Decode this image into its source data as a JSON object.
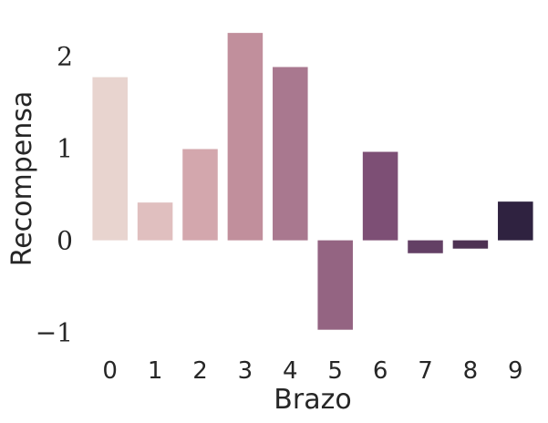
{
  "chart_data": {
    "type": "bar",
    "title": "",
    "xlabel": "Brazo",
    "ylabel": "Recompensa",
    "categories": [
      "0",
      "1",
      "2",
      "3",
      "4",
      "5",
      "6",
      "7",
      "8",
      "9"
    ],
    "values": [
      1.77,
      0.41,
      0.99,
      2.25,
      1.88,
      -0.97,
      0.96,
      -0.14,
      -0.09,
      0.42
    ],
    "ylim": [
      -1.25,
      2.35
    ],
    "yticks": [
      -1,
      0,
      1,
      2
    ],
    "ytick_labels": [
      "−1",
      "0",
      "1",
      "2"
    ],
    "grid": false,
    "colors": [
      "#e8d4cf",
      "#e0bfbf",
      "#d3a7ad",
      "#c18f9c",
      "#a9788f",
      "#946482",
      "#7d4f75",
      "#634065",
      "#4e3253",
      "#2f2240"
    ]
  }
}
